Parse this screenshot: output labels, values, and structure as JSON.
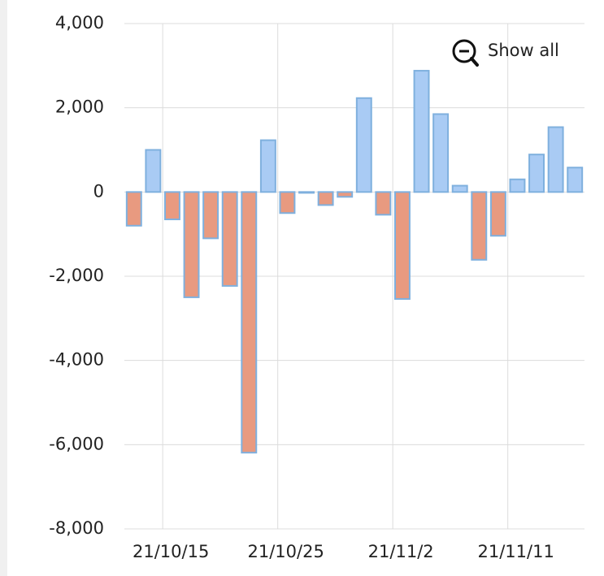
{
  "chart_data": {
    "type": "bar",
    "categories": [
      null,
      null,
      "21/10/15",
      null,
      null,
      null,
      null,
      null,
      "21/10/25",
      null,
      null,
      null,
      null,
      null,
      "21/11/2",
      null,
      null,
      null,
      null,
      null,
      "21/11/11",
      null,
      null,
      null
    ],
    "values": [
      -800,
      1000,
      -650,
      -2500,
      -1100,
      -2230,
      -6190,
      1230,
      -500,
      -20,
      -310,
      -115,
      2230,
      -540,
      -2540,
      2880,
      1850,
      150,
      -1610,
      -1040,
      300,
      890,
      1540,
      580
    ],
    "colors": {
      "positive": "#a9cbf4",
      "negative": "#e89a80"
    },
    "ylim": [
      -8000,
      4000
    ],
    "yticks": [
      {
        "value": -8000,
        "label": "-8,000"
      },
      {
        "value": -6000,
        "label": "-6,000"
      },
      {
        "value": -4000,
        "label": "-4,000"
      },
      {
        "value": -2000,
        "label": "-2,000"
      },
      0,
      {
        "value": 2000,
        "label": "2,000"
      },
      {
        "value": 4000,
        "label": "4,000"
      }
    ],
    "grid": true,
    "zoom_button": "Show all"
  }
}
